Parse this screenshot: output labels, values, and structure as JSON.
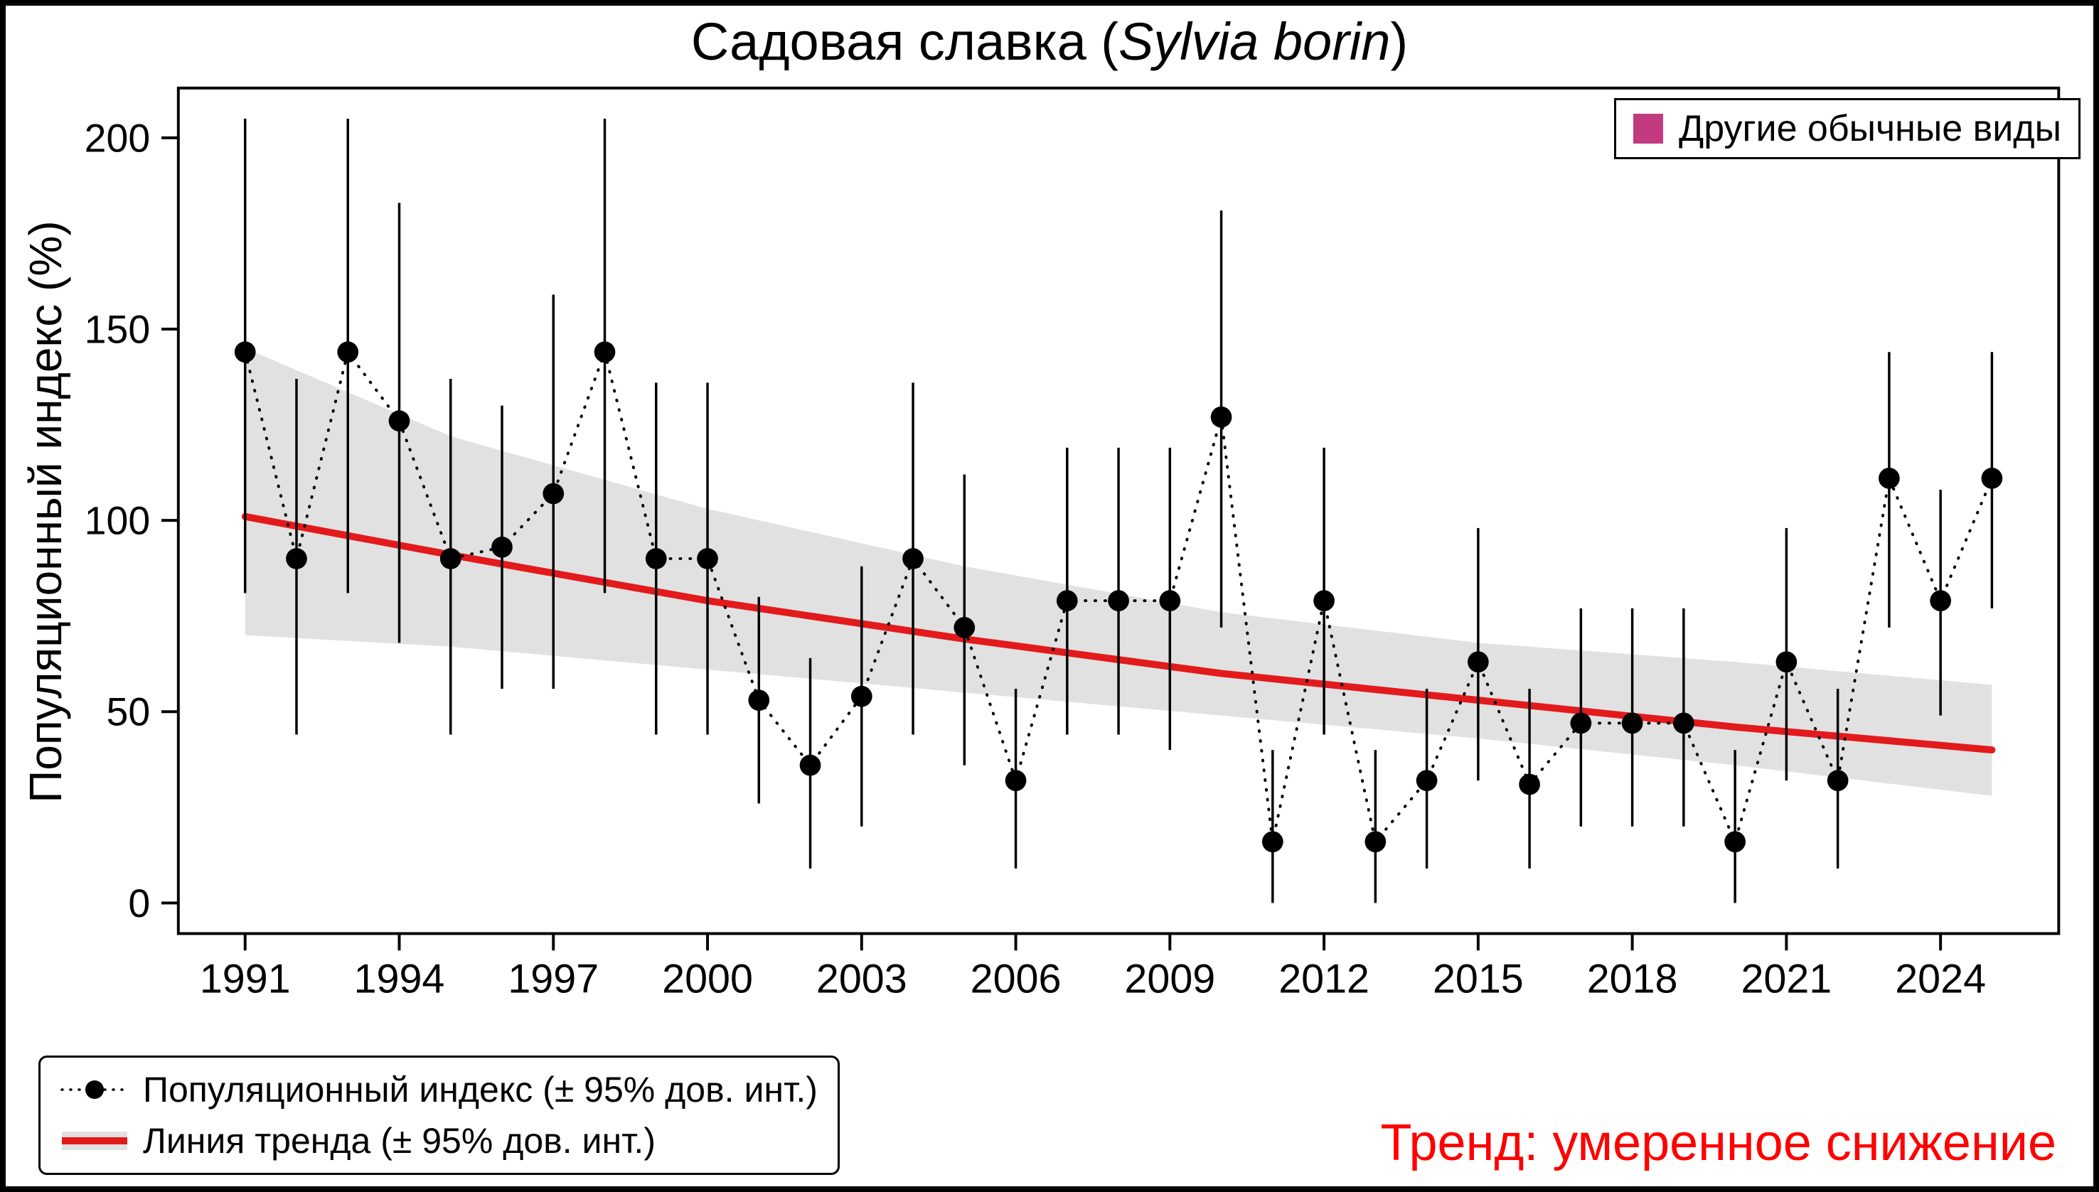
{
  "title": {
    "prefix": "Садовая славка (",
    "species": "Sylvia borin",
    "suffix": ")"
  },
  "y_axis_label": "Популяционный индекс (%)",
  "legend_top": {
    "label": "Другие обычные виды",
    "color": "#c23b80"
  },
  "legend_bottom": {
    "points_label": "Популяционный индекс (± 95% дов. инт.)",
    "trend_label": "Линия тренда (± 95% дов. инт.)"
  },
  "trend_status": {
    "text": "Тренд: умеренное снижение",
    "color": "#ff0000"
  },
  "chart_data": {
    "type": "scatter",
    "title": "Садовая славка (Sylvia borin)",
    "xlabel": "",
    "ylabel": "Популяционный индекс (%)",
    "legend_position": "top-right",
    "grid": false,
    "xlim": [
      1989.7,
      2026.3
    ],
    "ylim": [
      -8,
      213
    ],
    "xticks": [
      1991,
      1994,
      1997,
      2000,
      2003,
      2006,
      2009,
      2012,
      2015,
      2018,
      2021,
      2024
    ],
    "yticks": [
      0,
      50,
      100,
      150,
      200
    ],
    "years": [
      1991,
      1992,
      1993,
      1994,
      1995,
      1996,
      1997,
      1998,
      1999,
      2000,
      2001,
      2002,
      2003,
      2004,
      2005,
      2006,
      2007,
      2008,
      2009,
      2010,
      2011,
      2012,
      2013,
      2014,
      2015,
      2016,
      2017,
      2018,
      2019,
      2020,
      2021,
      2022,
      2023,
      2024,
      2025
    ],
    "index": [
      144,
      90,
      144,
      126,
      90,
      93,
      107,
      144,
      90,
      90,
      53,
      36,
      54,
      90,
      72,
      32,
      79,
      79,
      79,
      127,
      16,
      79,
      16,
      32,
      63,
      31,
      47,
      47,
      47,
      16,
      63,
      32,
      111,
      79,
      111
    ],
    "ci_low": [
      81,
      44,
      81,
      68,
      44,
      56,
      56,
      81,
      44,
      44,
      26,
      9,
      20,
      44,
      36,
      9,
      44,
      44,
      40,
      72,
      0,
      44,
      0,
      9,
      32,
      9,
      20,
      20,
      20,
      0,
      32,
      9,
      72,
      49,
      77
    ],
    "ci_high": [
      205,
      137,
      205,
      183,
      137,
      130,
      159,
      205,
      136,
      136,
      80,
      64,
      88,
      136,
      112,
      56,
      119,
      119,
      119,
      181,
      40,
      119,
      40,
      56,
      98,
      56,
      77,
      77,
      77,
      40,
      98,
      56,
      144,
      108,
      144
    ],
    "trend_line": {
      "x": [
        1991,
        1995,
        2000,
        2005,
        2010,
        2015,
        2020,
        2025
      ],
      "y": [
        101,
        91,
        79,
        69,
        60,
        53,
        46,
        40
      ]
    },
    "trend_band": {
      "x": [
        1991,
        1995,
        2000,
        2005,
        2010,
        2015,
        2020,
        2025
      ],
      "high": [
        145,
        122,
        103,
        88,
        76,
        68,
        63,
        57
      ],
      "low": [
        70,
        67,
        61,
        55,
        49,
        43,
        36,
        28
      ]
    },
    "colors": {
      "point": "#000000",
      "trend_line": "#e31a1c",
      "band": "#e1e1e1"
    }
  }
}
